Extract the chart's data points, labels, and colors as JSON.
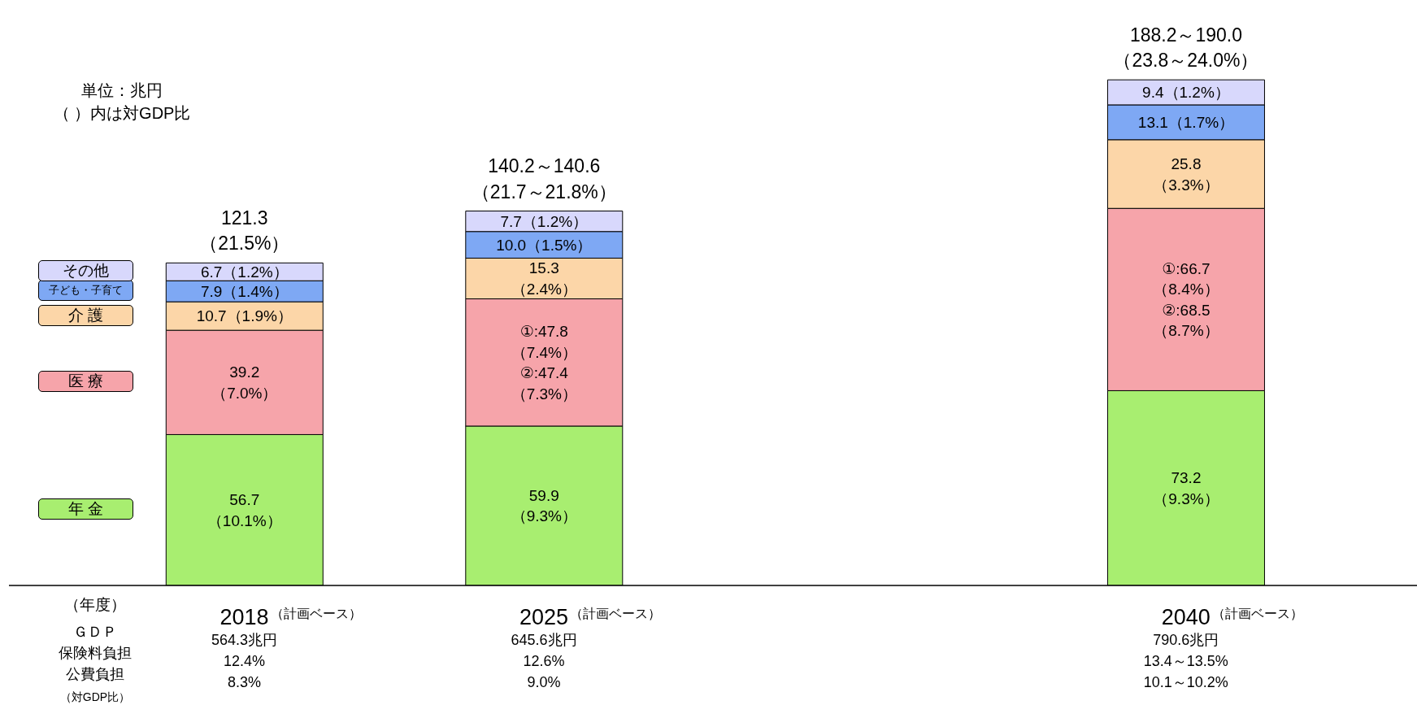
{
  "chart_data": {
    "type": "bar",
    "stacked": true,
    "x": [
      2018,
      2025,
      2040
    ],
    "xlim": [
      2012.5,
      2045.4
    ],
    "xticks": [
      2018,
      2025,
      2040
    ],
    "ylim": [
      0,
      220
    ],
    "series": [
      {
        "name": "年 金",
        "color": "#a8ee70",
        "values": [
          56.7,
          59.9,
          73.2
        ],
        "value_labels": [
          "56.7\n（10.1%）",
          "59.9\n（9.3%）",
          "73.2\n（9.3%）"
        ]
      },
      {
        "name": "医 療",
        "color": "#f6a4aa",
        "values": [
          39.2,
          47.8,
          68.5
        ],
        "value_labels": [
          "39.2\n（7.0%）",
          "①:47.8\n（7.4%）\n②:47.4\n（7.3%）",
          "①:66.7\n（8.4%）\n②:68.5\n（8.7%）"
        ]
      },
      {
        "name": "介 護",
        "color": "#fcd6a8",
        "values": [
          10.7,
          15.3,
          25.8
        ],
        "value_labels": [
          "10.7（1.9%）",
          "15.3\n（2.4%）",
          "25.8\n（3.3%）"
        ]
      },
      {
        "name": "子ども・子育て",
        "color": "#7ea8f4",
        "values": [
          7.9,
          10.0,
          13.1
        ],
        "value_labels": [
          "7.9（1.4%）",
          "10.0（1.5%）",
          "13.1（1.7%）"
        ]
      },
      {
        "name": "その他",
        "color": "#d8d8fc",
        "values": [
          6.7,
          7.7,
          9.4
        ],
        "value_labels": [
          "6.7（1.2%）",
          "7.7（1.2%）",
          "9.4（1.2%）"
        ]
      }
    ],
    "totals": [
      "121.3\n（21.5%）",
      "140.2～140.6\n（21.7～21.8%）",
      "188.2～190.0\n（23.8～24.0%）"
    ],
    "annotations": [
      "単位：兆円",
      "（ ）内は対GDP比",
      "（年度）",
      "ＧＤＰ",
      "保険料負担",
      "公費負担",
      "（対GDP比）",
      "（計画ベース）",
      "（計画ベース）",
      "（計画ベース）",
      "564.3兆円",
      "12.4%",
      "8.3%",
      "645.6兆円",
      "12.6%",
      "9.0%",
      "790.6兆円",
      "13.4～13.5%",
      "10.1～10.2%"
    ]
  }
}
